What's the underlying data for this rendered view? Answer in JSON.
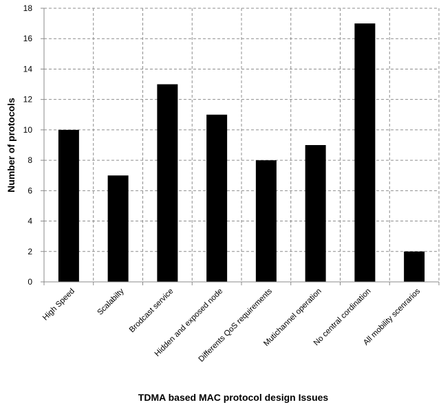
{
  "chart_data": {
    "type": "bar",
    "title": "",
    "xlabel": "TDMA based MAC protocol design Issues",
    "ylabel": "Number of protocols",
    "categories": [
      "High Speed",
      "Scalabilty",
      "Brodcast service",
      "Hidden and exposed node",
      "Differents QoS requirements",
      "Mutichannel operation",
      "No central cordination",
      "All mobility scenrarios"
    ],
    "values": [
      10,
      7,
      13,
      11,
      8,
      9,
      17,
      2
    ],
    "ylim": [
      0,
      18
    ],
    "yticks": [
      "0",
      "2",
      "4",
      "6",
      "8",
      "10",
      "12",
      "14",
      "16",
      "18"
    ],
    "grid": "dashed, horizontal and vertical",
    "bar_color": "#000000",
    "legend": "none"
  }
}
